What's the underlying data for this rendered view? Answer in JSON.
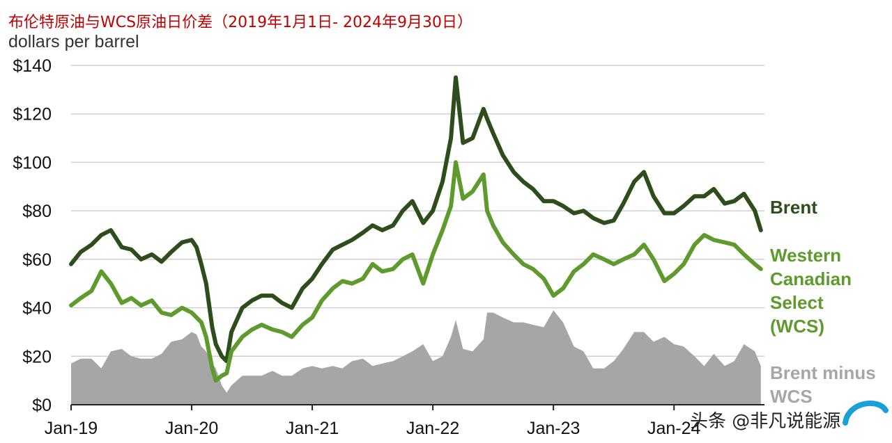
{
  "header": {
    "title": "布伦特原油与WCS原油日价差（2019年1月1日- 2024年9月30日）",
    "unit": "dollars per barrel"
  },
  "watermark": {
    "text": "头条 @非凡说能源",
    "logo": "eia"
  },
  "colors": {
    "brent": "#2e4d1c",
    "wcs": "#5e9a2e",
    "diff": "#a6a6a6",
    "grid": "#d0d0d0"
  },
  "chart_data": {
    "type": "line",
    "ylabel": "dollars per barrel",
    "ylim": [
      0,
      140
    ],
    "yticks": [
      0,
      20,
      40,
      60,
      80,
      100,
      120,
      140
    ],
    "ytick_labels": [
      "$0",
      "$20",
      "$40",
      "$60",
      "$80",
      "$100",
      "$120",
      "$140"
    ],
    "xlim": [
      2019.0,
      2024.75
    ],
    "xticks": [
      2019,
      2020,
      2021,
      2022,
      2023,
      2024
    ],
    "xtick_labels": [
      "Jan-19",
      "Jan-20",
      "Jan-21",
      "Jan-22",
      "Jan-23",
      "Jan-24"
    ],
    "grid": true,
    "legend": "right-side labels",
    "series": [
      {
        "name": "Brent",
        "label_lines": [
          "Brent"
        ],
        "style": "line",
        "color": "#2e4d1c",
        "x": [
          2019.0,
          2019.08,
          2019.17,
          2019.25,
          2019.33,
          2019.42,
          2019.5,
          2019.58,
          2019.67,
          2019.75,
          2019.83,
          2019.92,
          2020.0,
          2020.04,
          2020.08,
          2020.12,
          2020.17,
          2020.2,
          2020.25,
          2020.29,
          2020.33,
          2020.42,
          2020.5,
          2020.58,
          2020.67,
          2020.75,
          2020.83,
          2020.92,
          2021.0,
          2021.08,
          2021.17,
          2021.25,
          2021.33,
          2021.42,
          2021.5,
          2021.58,
          2021.67,
          2021.75,
          2021.83,
          2021.92,
          2022.0,
          2022.08,
          2022.15,
          2022.19,
          2022.25,
          2022.33,
          2022.42,
          2022.45,
          2022.5,
          2022.58,
          2022.67,
          2022.75,
          2022.83,
          2022.92,
          2023.0,
          2023.08,
          2023.17,
          2023.25,
          2023.33,
          2023.42,
          2023.5,
          2023.58,
          2023.67,
          2023.75,
          2023.83,
          2023.92,
          2024.0,
          2024.08,
          2024.17,
          2024.25,
          2024.33,
          2024.42,
          2024.5,
          2024.58,
          2024.67,
          2024.72
        ],
        "values": [
          58,
          63,
          66,
          70,
          72,
          65,
          64,
          60,
          62,
          59,
          63,
          67,
          68,
          65,
          58,
          50,
          32,
          25,
          20,
          18,
          30,
          40,
          43,
          45,
          45,
          42,
          40,
          48,
          52,
          58,
          64,
          66,
          68,
          71,
          74,
          72,
          74,
          80,
          84,
          75,
          80,
          92,
          110,
          135,
          108,
          110,
          122,
          118,
          112,
          103,
          96,
          92,
          89,
          84,
          84,
          82,
          79,
          80,
          77,
          75,
          76,
          83,
          92,
          96,
          86,
          79,
          79,
          82,
          86,
          86,
          89,
          83,
          84,
          87,
          80,
          72
        ]
      },
      {
        "name": "Western Canadian Select (WCS)",
        "label_lines": [
          "Western",
          "Canadian",
          "Select",
          "(WCS)"
        ],
        "style": "line",
        "color": "#5e9a2e",
        "x": [
          2019.0,
          2019.08,
          2019.17,
          2019.25,
          2019.33,
          2019.42,
          2019.5,
          2019.58,
          2019.67,
          2019.75,
          2019.83,
          2019.92,
          2020.0,
          2020.04,
          2020.08,
          2020.12,
          2020.17,
          2020.2,
          2020.25,
          2020.29,
          2020.33,
          2020.42,
          2020.5,
          2020.58,
          2020.67,
          2020.75,
          2020.83,
          2020.92,
          2021.0,
          2021.08,
          2021.17,
          2021.25,
          2021.33,
          2021.42,
          2021.5,
          2021.58,
          2021.67,
          2021.75,
          2021.83,
          2021.92,
          2022.0,
          2022.08,
          2022.15,
          2022.19,
          2022.25,
          2022.33,
          2022.42,
          2022.45,
          2022.5,
          2022.58,
          2022.67,
          2022.75,
          2022.83,
          2022.92,
          2023.0,
          2023.08,
          2023.17,
          2023.25,
          2023.33,
          2023.42,
          2023.5,
          2023.58,
          2023.67,
          2023.75,
          2023.83,
          2023.92,
          2024.0,
          2024.08,
          2024.17,
          2024.25,
          2024.33,
          2024.42,
          2024.5,
          2024.58,
          2024.67,
          2024.72
        ],
        "values": [
          41,
          44,
          47,
          55,
          50,
          42,
          44,
          41,
          43,
          38,
          37,
          40,
          38,
          36,
          34,
          28,
          15,
          10,
          12,
          13,
          22,
          28,
          31,
          33,
          31,
          30,
          28,
          33,
          36,
          43,
          48,
          51,
          50,
          52,
          58,
          55,
          56,
          60,
          62,
          50,
          62,
          72,
          82,
          100,
          85,
          88,
          95,
          80,
          74,
          67,
          62,
          58,
          56,
          52,
          45,
          48,
          55,
          58,
          62,
          60,
          58,
          60,
          62,
          66,
          60,
          51,
          54,
          58,
          66,
          70,
          68,
          67,
          66,
          62,
          58,
          56
        ]
      },
      {
        "name": "Brent minus WCS",
        "label_lines": [
          "Brent minus",
          "WCS"
        ],
        "style": "area",
        "color": "#a6a6a6",
        "x": [
          2019.0,
          2019.08,
          2019.17,
          2019.25,
          2019.33,
          2019.42,
          2019.5,
          2019.58,
          2019.67,
          2019.75,
          2019.83,
          2019.92,
          2020.0,
          2020.04,
          2020.08,
          2020.12,
          2020.17,
          2020.2,
          2020.25,
          2020.29,
          2020.33,
          2020.42,
          2020.5,
          2020.58,
          2020.67,
          2020.75,
          2020.83,
          2020.92,
          2021.0,
          2021.08,
          2021.17,
          2021.25,
          2021.33,
          2021.42,
          2021.5,
          2021.58,
          2021.67,
          2021.75,
          2021.83,
          2021.92,
          2022.0,
          2022.08,
          2022.15,
          2022.19,
          2022.25,
          2022.33,
          2022.42,
          2022.45,
          2022.5,
          2022.58,
          2022.67,
          2022.75,
          2022.83,
          2022.92,
          2023.0,
          2023.08,
          2023.17,
          2023.25,
          2023.33,
          2023.42,
          2023.5,
          2023.58,
          2023.67,
          2023.75,
          2023.83,
          2023.92,
          2024.0,
          2024.08,
          2024.17,
          2024.25,
          2024.33,
          2024.42,
          2024.5,
          2024.58,
          2024.67,
          2024.72
        ],
        "values": [
          17,
          19,
          19,
          15,
          22,
          23,
          20,
          19,
          19,
          21,
          26,
          27,
          30,
          29,
          24,
          22,
          17,
          15,
          8,
          5,
          8,
          12,
          12,
          12,
          14,
          12,
          12,
          15,
          16,
          15,
          16,
          15,
          18,
          19,
          16,
          17,
          18,
          20,
          22,
          25,
          18,
          20,
          28,
          35,
          23,
          22,
          27,
          38,
          38,
          36,
          34,
          34,
          33,
          32,
          39,
          34,
          24,
          22,
          15,
          15,
          18,
          23,
          30,
          30,
          26,
          28,
          25,
          24,
          20,
          16,
          21,
          16,
          18,
          25,
          22,
          16
        ]
      }
    ]
  }
}
